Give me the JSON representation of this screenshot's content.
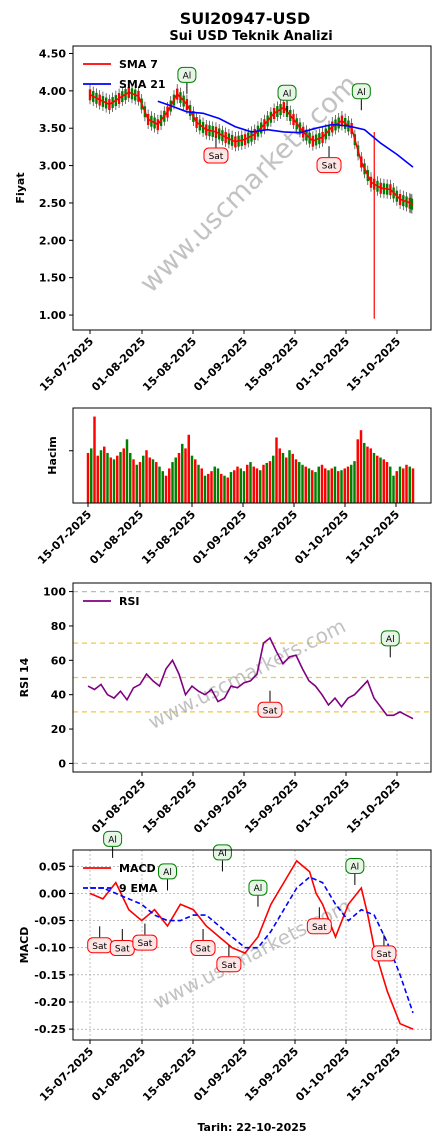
{
  "figure": {
    "title": "SUI20947-USD",
    "subtitle": "Sui USD Teknik Analizi",
    "footer": "Tarih: 22-10-2025",
    "watermark": "www.uscmarkets.com"
  },
  "chart_data": [
    {
      "id": "price",
      "type": "line",
      "ylabel": "Fiyat",
      "ylim": [
        0.8,
        4.6
      ],
      "yticks": [
        "1.00",
        "1.50",
        "2.00",
        "2.50",
        "3.00",
        "3.50",
        "4.00",
        "4.50"
      ],
      "xticks": [
        "15-07-2025",
        "01-08-2025",
        "15-08-2025",
        "01-09-2025",
        "15-09-2025",
        "01-10-2025",
        "15-10-2025"
      ],
      "legend": "top-left",
      "series": [
        {
          "name": "SMA 7",
          "color": "#ff0000",
          "x": [
            0,
            3,
            6,
            9,
            12,
            15,
            18,
            21,
            24,
            27,
            30,
            33,
            36,
            39,
            42,
            45,
            48,
            51,
            54,
            57,
            60,
            63,
            66,
            69,
            72,
            75,
            78,
            81,
            84,
            87,
            90,
            93,
            96,
            99,
            100
          ],
          "y": [
            3.95,
            3.88,
            3.82,
            3.9,
            3.98,
            3.93,
            3.62,
            3.55,
            3.72,
            3.96,
            3.82,
            3.58,
            3.48,
            3.45,
            3.38,
            3.32,
            3.35,
            3.42,
            3.55,
            3.7,
            3.78,
            3.62,
            3.45,
            3.33,
            3.38,
            3.52,
            3.6,
            3.5,
            3.05,
            2.78,
            2.7,
            2.68,
            2.55,
            2.5,
            2.48
          ]
        },
        {
          "name": "SMA 21",
          "color": "#0000ff",
          "x": [
            21,
            25,
            30,
            35,
            40,
            45,
            50,
            55,
            60,
            65,
            70,
            75,
            80,
            85,
            90,
            95,
            100
          ],
          "y": [
            3.86,
            3.8,
            3.72,
            3.7,
            3.63,
            3.52,
            3.45,
            3.48,
            3.45,
            3.44,
            3.5,
            3.55,
            3.53,
            3.48,
            3.3,
            3.15,
            2.98
          ]
        }
      ],
      "annotations": [
        {
          "label": "Al",
          "x": 30,
          "y": 3.92
        },
        {
          "label": "Sat",
          "x": 39,
          "y": 3.43
        },
        {
          "label": "Al",
          "x": 61,
          "y": 3.68
        },
        {
          "label": "Sat",
          "x": 74,
          "y": 3.3
        },
        {
          "label": "Al",
          "x": 84,
          "y": 3.7
        }
      ]
    },
    {
      "id": "volume",
      "type": "bar",
      "ylabel": "Hacim",
      "xticks": [
        "15-07-2025",
        "01-08-2025",
        "15-08-2025",
        "01-09-2025",
        "15-09-2025",
        "01-10-2025",
        "15-10-2025"
      ],
      "values": [
        0.55,
        0.6,
        0.95,
        0.52,
        0.58,
        0.62,
        0.55,
        0.5,
        0.48,
        0.52,
        0.56,
        0.6,
        0.7,
        0.55,
        0.48,
        0.42,
        0.45,
        0.52,
        0.58,
        0.5,
        0.48,
        0.45,
        0.4,
        0.35,
        0.3,
        0.38,
        0.45,
        0.5,
        0.55,
        0.65,
        0.6,
        0.75,
        0.52,
        0.48,
        0.42,
        0.38,
        0.3,
        0.32,
        0.35,
        0.4,
        0.38,
        0.32,
        0.3,
        0.28,
        0.34,
        0.36,
        0.4,
        0.38,
        0.35,
        0.42,
        0.45,
        0.4,
        0.38,
        0.36,
        0.42,
        0.44,
        0.46,
        0.52,
        0.72,
        0.6,
        0.55,
        0.5,
        0.58,
        0.54,
        0.48,
        0.45,
        0.42,
        0.4,
        0.38,
        0.36,
        0.34,
        0.4,
        0.42,
        0.38,
        0.36,
        0.38,
        0.4,
        0.35,
        0.36,
        0.38,
        0.4,
        0.42,
        0.46,
        0.7,
        0.8,
        0.66,
        0.62,
        0.6,
        0.55,
        0.52,
        0.5,
        0.48,
        0.45,
        0.4,
        0.3,
        0.35,
        0.4,
        0.38,
        0.42,
        0.4,
        0.38
      ],
      "colors": [
        "r",
        "g",
        "r",
        "r",
        "g",
        "r",
        "g",
        "r",
        "g",
        "r",
        "g",
        "r",
        "g",
        "g",
        "r",
        "g",
        "r",
        "g",
        "r",
        "r",
        "g",
        "r",
        "g",
        "g",
        "r",
        "r",
        "g",
        "g",
        "r",
        "g",
        "r",
        "r",
        "g",
        "r",
        "g",
        "r",
        "g",
        "r",
        "r",
        "g",
        "g",
        "r",
        "g",
        "r",
        "g",
        "r",
        "r",
        "g",
        "g",
        "r",
        "g",
        "r",
        "r",
        "g",
        "r",
        "g",
        "r",
        "g",
        "r",
        "r",
        "g",
        "r",
        "g",
        "r",
        "r",
        "g",
        "g",
        "r",
        "g",
        "r",
        "g",
        "g",
        "r",
        "r",
        "g",
        "r",
        "g",
        "r",
        "g",
        "r",
        "r",
        "g",
        "g",
        "r",
        "r",
        "g",
        "r",
        "r",
        "g",
        "r",
        "g",
        "r",
        "r",
        "g",
        "g",
        "r",
        "g",
        "r",
        "r",
        "g",
        "r"
      ]
    },
    {
      "id": "rsi",
      "type": "line",
      "ylabel": "RSI 14",
      "ylim": [
        -5,
        105
      ],
      "yticks": [
        "0",
        "20",
        "40",
        "60",
        "80",
        "100"
      ],
      "xticks": [
        "01-08-2025",
        "15-08-2025",
        "01-09-2025",
        "15-09-2025",
        "01-10-2025",
        "15-10-2025"
      ],
      "legend": "top-left",
      "hlines": [
        {
          "y": 0,
          "color": "#bbbbbb"
        },
        {
          "y": 30,
          "color": "#f5c542"
        },
        {
          "y": 50,
          "color": "#f5c542"
        },
        {
          "y": 70,
          "color": "#f5c542"
        },
        {
          "y": 100,
          "color": "#bbbbbb"
        }
      ],
      "series": [
        {
          "name": "RSI",
          "color": "#800080",
          "x": [
            0,
            2,
            4,
            6,
            8,
            10,
            12,
            14,
            16,
            18,
            20,
            22,
            24,
            26,
            28,
            30,
            32,
            34,
            36,
            38,
            40,
            42,
            44,
            46,
            48,
            50,
            52,
            54,
            56,
            58,
            60,
            62,
            64,
            66,
            68,
            70,
            72,
            74,
            76,
            78,
            80,
            82,
            84,
            86,
            88,
            90,
            92,
            94,
            96,
            98,
            100
          ],
          "y": [
            45,
            43,
            46,
            40,
            38,
            42,
            37,
            44,
            46,
            52,
            48,
            45,
            55,
            60,
            52,
            40,
            45,
            42,
            40,
            43,
            36,
            38,
            45,
            44,
            47,
            48,
            52,
            70,
            73,
            65,
            58,
            62,
            63,
            55,
            48,
            45,
            40,
            34,
            38,
            33,
            38,
            40,
            44,
            48,
            38,
            33,
            28,
            28,
            30,
            28,
            26
          ]
        }
      ],
      "annotations": [
        {
          "label": "Sat",
          "x": 56,
          "y": 44
        },
        {
          "label": "Al",
          "x": 93,
          "y": 60
        }
      ]
    },
    {
      "id": "macd",
      "type": "line",
      "ylabel": "MACD",
      "ylim": [
        -0.27,
        0.08
      ],
      "yticks": [
        "-0.25",
        "-0.20",
        "-0.15",
        "-0.10",
        "-0.05",
        "0.00",
        "0.05"
      ],
      "xticks": [
        "15-07-2025",
        "01-08-2025",
        "15-08-2025",
        "01-09-2025",
        "15-09-2025",
        "01-10-2025",
        "15-10-2025"
      ],
      "legend": "top-left",
      "series": [
        {
          "name": "MACD",
          "color": "#ff0000",
          "x": [
            0,
            4,
            8,
            12,
            16,
            20,
            24,
            28,
            32,
            36,
            40,
            44,
            48,
            52,
            56,
            60,
            64,
            68,
            70,
            72,
            76,
            80,
            84,
            86,
            88,
            92,
            96,
            100
          ],
          "y": [
            0.0,
            -0.01,
            0.02,
            -0.03,
            -0.05,
            -0.03,
            -0.06,
            -0.02,
            -0.03,
            -0.06,
            -0.08,
            -0.1,
            -0.11,
            -0.08,
            -0.02,
            0.02,
            0.06,
            0.04,
            0.0,
            -0.02,
            -0.08,
            -0.02,
            0.01,
            -0.04,
            -0.1,
            -0.18,
            -0.24,
            -0.25
          ]
        },
        {
          "name": "9 EMA",
          "color": "#0000ff",
          "dashed": true,
          "x": [
            0,
            4,
            8,
            12,
            16,
            20,
            24,
            28,
            32,
            36,
            40,
            44,
            48,
            52,
            56,
            60,
            64,
            68,
            72,
            76,
            80,
            84,
            88,
            92,
            96,
            100
          ],
          "y": [
            0.01,
            0.01,
            0.0,
            -0.01,
            -0.02,
            -0.04,
            -0.05,
            -0.05,
            -0.04,
            -0.04,
            -0.06,
            -0.08,
            -0.1,
            -0.1,
            -0.07,
            -0.03,
            0.01,
            0.03,
            0.02,
            -0.02,
            -0.05,
            -0.03,
            -0.04,
            -0.09,
            -0.15,
            -0.22
          ]
        }
      ],
      "annotations": [
        {
          "label": "Sat",
          "x": 3,
          "y": -0.055
        },
        {
          "label": "Al",
          "x": 7,
          "y": 0.06
        },
        {
          "label": "Sat",
          "x": 10,
          "y": -0.06
        },
        {
          "label": "Sat",
          "x": 17,
          "y": -0.05
        },
        {
          "label": "Al",
          "x": 24,
          "y": 0.0
        },
        {
          "label": "Sat",
          "x": 35,
          "y": -0.06
        },
        {
          "label": "Al",
          "x": 41,
          "y": 0.035
        },
        {
          "label": "Sat",
          "x": 43,
          "y": -0.09
        },
        {
          "label": "Al",
          "x": 52,
          "y": -0.03
        },
        {
          "label": "Sat",
          "x": 71,
          "y": -0.02
        },
        {
          "label": "Al",
          "x": 82,
          "y": 0.01
        },
        {
          "label": "Sat",
          "x": 91,
          "y": -0.07
        }
      ]
    }
  ]
}
